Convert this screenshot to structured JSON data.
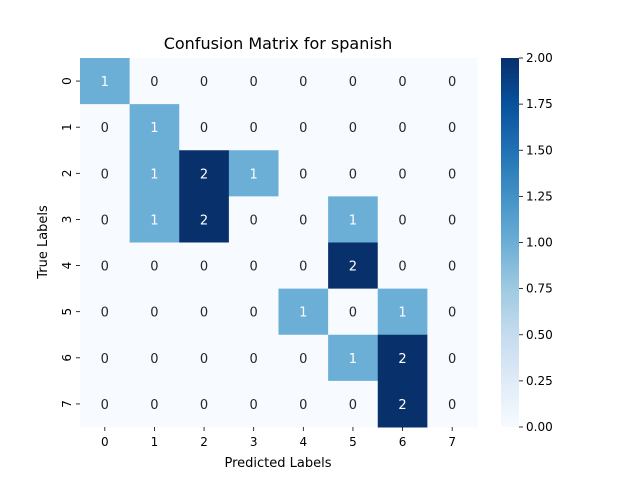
{
  "chart_data": {
    "type": "heatmap",
    "title": "Confusion Matrix for spanish",
    "xlabel": "Predicted Labels",
    "ylabel": "True Labels",
    "x_ticks": [
      "0",
      "1",
      "2",
      "3",
      "4",
      "5",
      "6",
      "7"
    ],
    "y_ticks": [
      "0",
      "1",
      "2",
      "3",
      "4",
      "5",
      "6",
      "7"
    ],
    "matrix": [
      [
        1,
        0,
        0,
        0,
        0,
        0,
        0,
        0
      ],
      [
        0,
        1,
        0,
        0,
        0,
        0,
        0,
        0
      ],
      [
        0,
        1,
        2,
        1,
        0,
        0,
        0,
        0
      ],
      [
        0,
        1,
        2,
        0,
        0,
        1,
        0,
        0
      ],
      [
        0,
        0,
        0,
        0,
        0,
        2,
        0,
        0
      ],
      [
        0,
        0,
        0,
        0,
        1,
        0,
        1,
        0
      ],
      [
        0,
        0,
        0,
        0,
        0,
        1,
        2,
        0
      ],
      [
        0,
        0,
        0,
        0,
        0,
        0,
        2,
        0
      ]
    ],
    "colorbar": {
      "min": 0,
      "max": 2,
      "ticks": [
        "0.00",
        "0.25",
        "0.50",
        "0.75",
        "1.00",
        "1.25",
        "1.50",
        "1.75",
        "2.00"
      ]
    },
    "colors": {
      "low": "#f7fbff",
      "mid": "#6baed6",
      "high": "#08306b"
    }
  }
}
